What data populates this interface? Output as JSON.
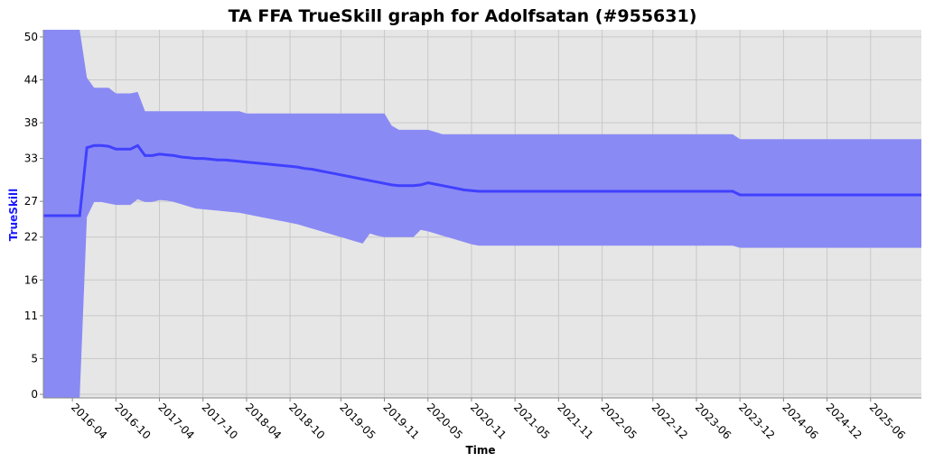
{
  "chart_data": {
    "type": "line",
    "title": "TA FFA TrueSkill graph for Adolfsatan (#955631)",
    "xlabel": "Time",
    "ylabel": "TrueSkill",
    "y_ticks": [
      0,
      5,
      11,
      16,
      22,
      27,
      33,
      38,
      44,
      50
    ],
    "ylim": [
      -0.5,
      51
    ],
    "x_ticks": [
      "2016-04",
      "2016-10",
      "2017-04",
      "2017-10",
      "2018-04",
      "2018-10",
      "2019-05",
      "2019-11",
      "2020-05",
      "2020-11",
      "2021-05",
      "2021-11",
      "2022-05",
      "2022-12",
      "2023-06",
      "2023-12",
      "2024-06",
      "2024-12",
      "2025-06"
    ],
    "grid": true,
    "colors": {
      "line": "#4040ff",
      "band": "#8a8af5",
      "plot_bg": "#e6e6e6",
      "grid": "#c8c8c8"
    },
    "series": [
      {
        "x": [
          "2015-12",
          "2016-01",
          "2016-02",
          "2016-03",
          "2016-04",
          "2016-05",
          "2016-06",
          "2016-07",
          "2016-08",
          "2016-09",
          "2016-10",
          "2016-11",
          "2016-12",
          "2017-01",
          "2017-02",
          "2017-03",
          "2017-04",
          "2017-05",
          "2017-06",
          "2017-07",
          "2017-08",
          "2017-09",
          "2017-10",
          "2017-11",
          "2017-12",
          "2018-01",
          "2018-02",
          "2018-03",
          "2018-04",
          "2018-05",
          "2018-06",
          "2018-07",
          "2018-08",
          "2018-09",
          "2018-10",
          "2018-11",
          "2018-12",
          "2019-01",
          "2019-02",
          "2019-03",
          "2019-04",
          "2019-05",
          "2019-06",
          "2019-07",
          "2019-08",
          "2019-09",
          "2019-10",
          "2019-11",
          "2019-12",
          "2020-01",
          "2020-02",
          "2020-03",
          "2020-04",
          "2020-05",
          "2020-06",
          "2020-07",
          "2020-08",
          "2020-09",
          "2020-10",
          "2020-11",
          "2020-12",
          "2021-01",
          "2021-02",
          "2021-03",
          "2023-11",
          "2023-12",
          "2026-01"
        ],
        "y": [
          25.0,
          25.0,
          25.0,
          25.0,
          25.0,
          25.0,
          34.5,
          34.8,
          34.8,
          34.7,
          34.3,
          34.3,
          34.3,
          34.8,
          33.4,
          33.4,
          33.6,
          33.5,
          33.4,
          33.2,
          33.1,
          33.0,
          33.0,
          32.9,
          32.8,
          32.8,
          32.7,
          32.6,
          32.5,
          32.4,
          32.3,
          32.2,
          32.1,
          32.0,
          31.9,
          31.8,
          31.6,
          31.5,
          31.3,
          31.1,
          30.9,
          30.7,
          30.5,
          30.3,
          30.1,
          29.9,
          29.7,
          29.5,
          29.3,
          29.2,
          29.2,
          29.2,
          29.3,
          29.6,
          29.4,
          29.2,
          29.0,
          28.8,
          28.6,
          28.5,
          28.4,
          28.4,
          28.4,
          28.4,
          28.4,
          27.9,
          27.9
        ],
        "upper": [
          51,
          51,
          51,
          51,
          51,
          51,
          44.3,
          42.9,
          42.9,
          42.9,
          42.1,
          42.1,
          42.1,
          42.3,
          39.6,
          39.6,
          39.6,
          39.6,
          39.6,
          39.6,
          39.6,
          39.6,
          39.6,
          39.6,
          39.6,
          39.6,
          39.6,
          39.6,
          39.3,
          39.3,
          39.3,
          39.3,
          39.3,
          39.3,
          39.3,
          39.3,
          39.3,
          39.3,
          39.3,
          39.3,
          39.3,
          39.3,
          39.3,
          39.3,
          39.3,
          39.3,
          39.3,
          39.3,
          37.6,
          37.0,
          37.0,
          37.0,
          37.0,
          37.0,
          36.7,
          36.4,
          36.4,
          36.4,
          36.4,
          36.4,
          36.4,
          36.4,
          36.4,
          36.4,
          36.4,
          35.7,
          35.7
        ],
        "lower": [
          -0.5,
          -0.5,
          -0.5,
          -0.5,
          -0.5,
          -0.5,
          24.8,
          26.9,
          26.9,
          26.7,
          26.5,
          26.5,
          26.5,
          27.3,
          26.9,
          26.9,
          27.2,
          27.1,
          26.9,
          26.6,
          26.3,
          26.0,
          25.9,
          25.8,
          25.7,
          25.6,
          25.5,
          25.4,
          25.2,
          25.0,
          24.8,
          24.6,
          24.4,
          24.2,
          24.0,
          23.8,
          23.5,
          23.2,
          22.9,
          22.6,
          22.3,
          22.0,
          21.7,
          21.4,
          21.1,
          22.5,
          22.2,
          22.0,
          22.0,
          22.0,
          22.0,
          22.0,
          23.0,
          22.8,
          22.5,
          22.2,
          21.9,
          21.6,
          21.3,
          21.0,
          20.8,
          20.8,
          20.8,
          20.8,
          20.8,
          20.5,
          20.5
        ]
      }
    ]
  }
}
